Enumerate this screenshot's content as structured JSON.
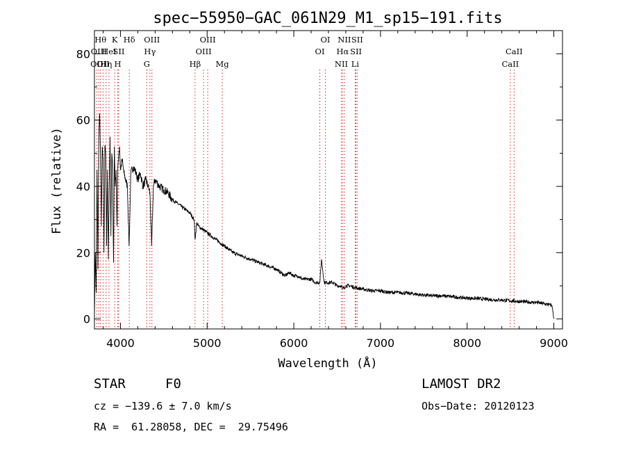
{
  "chart_data": {
    "type": "line",
    "title": "spec−55950−GAC_061N29_M1_sp15−191.fits",
    "xlabel": "Wavelength (Å)",
    "ylabel": "Flux (relative)",
    "xlim": [
      3700,
      9100
    ],
    "ylim": [
      -3,
      87
    ],
    "xticks": [
      4000,
      5000,
      6000,
      7000,
      8000,
      9000
    ],
    "yticks": [
      0,
      20,
      40,
      60,
      80
    ],
    "series": [
      {
        "x": [
          3700,
          3710,
          3720,
          3730,
          3740,
          3750,
          3760,
          3770,
          3780,
          3790,
          3800,
          3810,
          3820,
          3830,
          3840,
          3850,
          3860,
          3870,
          3880,
          3890,
          3900,
          3910,
          3920,
          3930,
          3940,
          3950,
          3960,
          3970,
          3980,
          3990,
          4000,
          4020,
          4040,
          4060,
          4080,
          4100,
          4120,
          4150,
          4180,
          4200,
          4230,
          4260,
          4290,
          4320,
          4340,
          4360,
          4380,
          4400,
          4450,
          4500,
          4550,
          4600,
          4650,
          4700,
          4750,
          4800,
          4850,
          4861,
          4880,
          4900,
          4950,
          5000,
          5050,
          5100,
          5150,
          5200,
          5250,
          5300,
          5400,
          5500,
          5600,
          5700,
          5800,
          5850,
          5900,
          5950,
          6000,
          6050,
          6100,
          6150,
          6200,
          6250,
          6300,
          6320,
          6350,
          6400,
          6450,
          6500,
          6550,
          6563,
          6600,
          6650,
          6700,
          6800,
          6900,
          7000,
          7100,
          7200,
          7300,
          7400,
          7500,
          7600,
          7700,
          7800,
          7900,
          8000,
          8100,
          8200,
          8300,
          8400,
          8500,
          8600,
          8700,
          8750,
          8800,
          8850,
          8900,
          8950,
          8980,
          9000
        ],
        "y": [
          1,
          20,
          8,
          45,
          15,
          55,
          62,
          50,
          28,
          52,
          48,
          20,
          52,
          50,
          22,
          45,
          18,
          40,
          55,
          25,
          50,
          45,
          17,
          52,
          40,
          45,
          28,
          46,
          50,
          52,
          45,
          48,
          44,
          42,
          40,
          22,
          44,
          46,
          44,
          42,
          44,
          40,
          42,
          40,
          38,
          22,
          40,
          42,
          40,
          39,
          38,
          36,
          35,
          34,
          33,
          32,
          30,
          24,
          29,
          28,
          27,
          26,
          25,
          24,
          23,
          22,
          21,
          20,
          19,
          18,
          17,
          16,
          15,
          14,
          13,
          14,
          13,
          13,
          12,
          12,
          12,
          11,
          11,
          18,
          11,
          11,
          11,
          10,
          10,
          9,
          10,
          10,
          9.5,
          9,
          8.5,
          8.5,
          8,
          8,
          7.8,
          7.5,
          7.2,
          7,
          7,
          6.8,
          6.5,
          6.3,
          6.2,
          6,
          5.8,
          5.7,
          5.5,
          5.3,
          5.1,
          5,
          5,
          4.8,
          4.5,
          4.3,
          4,
          0
        ]
      }
    ],
    "lines": [
      {
        "wave": 3727,
        "label": "OII",
        "row": 0
      },
      {
        "wave": 3750,
        "label": "OIII",
        "row": 1
      },
      {
        "wave": 3770,
        "label": "Hθ",
        "row": 2
      },
      {
        "wave": 3800,
        "label": "OII",
        "row": 0
      },
      {
        "wave": 3835,
        "label": "Hη",
        "row": 0
      },
      {
        "wave": 3868,
        "label": "HeI",
        "row": 1
      },
      {
        "wave": 3934,
        "label": "K",
        "row": 2
      },
      {
        "wave": 3969,
        "label": "H",
        "row": 0
      },
      {
        "wave": 3980,
        "label": "SII",
        "row": 1
      },
      {
        "wave": 4102,
        "label": "Hδ",
        "row": 2
      },
      {
        "wave": 4304,
        "label": "G",
        "row": 0
      },
      {
        "wave": 4340,
        "label": "Hγ",
        "row": 1
      },
      {
        "wave": 4363,
        "label": "OIII",
        "row": 2
      },
      {
        "wave": 4861,
        "label": "Hβ",
        "row": 0
      },
      {
        "wave": 4959,
        "label": "OIII",
        "row": 1
      },
      {
        "wave": 5007,
        "label": "OIII",
        "row": 2
      },
      {
        "wave": 5175,
        "label": "Mg",
        "row": 0
      },
      {
        "wave": 6300,
        "label": "OI",
        "row": 1
      },
      {
        "wave": 6364,
        "label": "OI",
        "row": 2
      },
      {
        "wave": 6548,
        "label": "NII",
        "row": 0
      },
      {
        "wave": 6563,
        "label": "Hα",
        "row": 1
      },
      {
        "wave": 6583,
        "label": "NII",
        "row": 2
      },
      {
        "wave": 6708,
        "label": "Li",
        "row": 0
      },
      {
        "wave": 6717,
        "label": "SII",
        "row": 1
      },
      {
        "wave": 6731,
        "label": "SII",
        "row": 2
      },
      {
        "wave": 8498,
        "label": "CaII",
        "row": 0
      },
      {
        "wave": 8542,
        "label": "CaII",
        "row": 1
      }
    ]
  },
  "info": {
    "class_label": "STAR",
    "subclass_label": "F0",
    "survey_label": "LAMOST DR2",
    "cz_text": "cz = −139.6 ± 7.0 km/s",
    "obs_date_text": "Obs−Date: 20120123",
    "coords_text": "RA =  61.28058, DEC =  29.75496"
  }
}
